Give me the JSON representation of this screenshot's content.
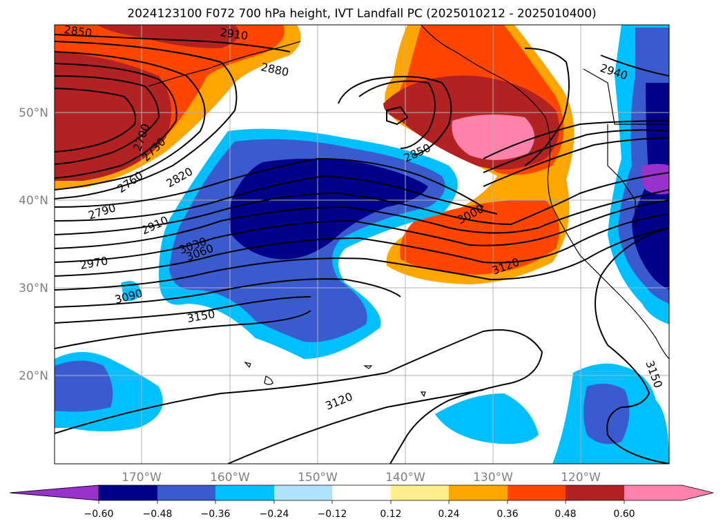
{
  "title": "2024123100 F072 700 hPa height, IVT Landfall PC (2025010212 - 2025010400)",
  "lat_labels": [
    "50°N",
    "40°N",
    "30°N",
    "20°N"
  ],
  "lon_labels": [
    "170°W",
    "160°W",
    "150°W",
    "140°W",
    "130°W",
    "120°W"
  ],
  "colorbar": {
    "ticks": [
      "−0.60",
      "−0.48",
      "−0.36",
      "−0.24",
      "−0.12",
      "0.12",
      "0.24",
      "0.36",
      "0.48",
      "0.60"
    ],
    "colors": [
      "#9932cc",
      "#00008b",
      "#3a5bcd",
      "#00bfff",
      "#b0e2ff",
      "#ffffff",
      "#ffec8b",
      "#ffa500",
      "#ff4500",
      "#b22222",
      "#ff82ab"
    ]
  },
  "contour_labels": [
    "2850",
    "2910",
    "2880",
    "2940",
    "2700",
    "2730",
    "2760",
    "2790",
    "2820",
    "2910",
    "2970",
    "3030",
    "3060",
    "3090",
    "3150",
    "2850",
    "3000",
    "3120",
    "3120",
    "3150"
  ]
}
